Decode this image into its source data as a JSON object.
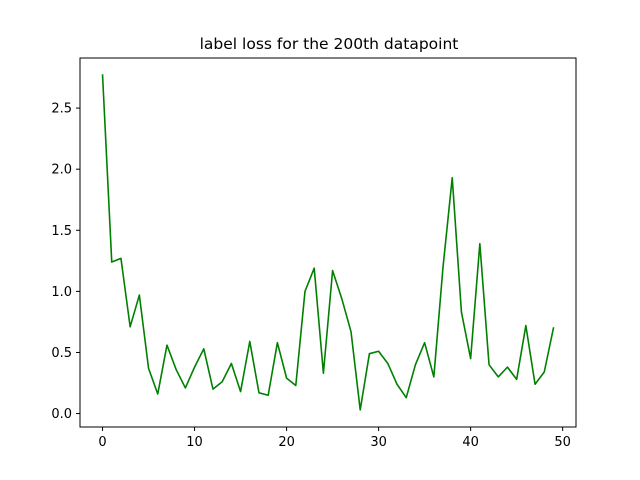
{
  "chart_data": {
    "type": "line",
    "title": "label loss for the 200th datapoint",
    "xlabel": "",
    "ylabel": "",
    "xlim": [
      -2.45,
      51.45
    ],
    "ylim": [
      -0.11,
      2.91
    ],
    "x_ticks": [
      0,
      10,
      20,
      30,
      40,
      50
    ],
    "x_tick_labels": [
      "0",
      "10",
      "20",
      "30",
      "40",
      "50"
    ],
    "y_ticks": [
      0.0,
      0.5,
      1.0,
      1.5,
      2.0,
      2.5
    ],
    "y_tick_labels": [
      "0.0",
      "0.5",
      "1.0",
      "1.5",
      "2.0",
      "2.5"
    ],
    "grid": false,
    "series": [
      {
        "color": "#008000",
        "x": [
          0,
          1,
          2,
          3,
          4,
          5,
          6,
          7,
          8,
          9,
          10,
          11,
          12,
          13,
          14,
          15,
          16,
          17,
          18,
          19,
          20,
          21,
          22,
          23,
          24,
          25,
          26,
          27,
          28,
          29,
          30,
          31,
          32,
          33,
          34,
          35,
          36,
          37,
          38,
          39,
          40,
          41,
          42,
          43,
          44,
          45,
          46,
          47,
          48,
          49
        ],
        "values": [
          2.77,
          1.24,
          1.27,
          0.71,
          0.97,
          0.37,
          0.16,
          0.56,
          0.36,
          0.21,
          0.38,
          0.53,
          0.2,
          0.26,
          0.41,
          0.18,
          0.59,
          0.17,
          0.15,
          0.58,
          0.29,
          0.23,
          1.0,
          1.19,
          0.33,
          1.17,
          0.94,
          0.67,
          0.03,
          0.49,
          0.51,
          0.41,
          0.24,
          0.13,
          0.4,
          0.58,
          0.3,
          1.2,
          1.93,
          0.83,
          0.45,
          1.39,
          0.4,
          0.3,
          0.38,
          0.28,
          0.72,
          0.24,
          0.34,
          0.7
        ]
      }
    ]
  }
}
